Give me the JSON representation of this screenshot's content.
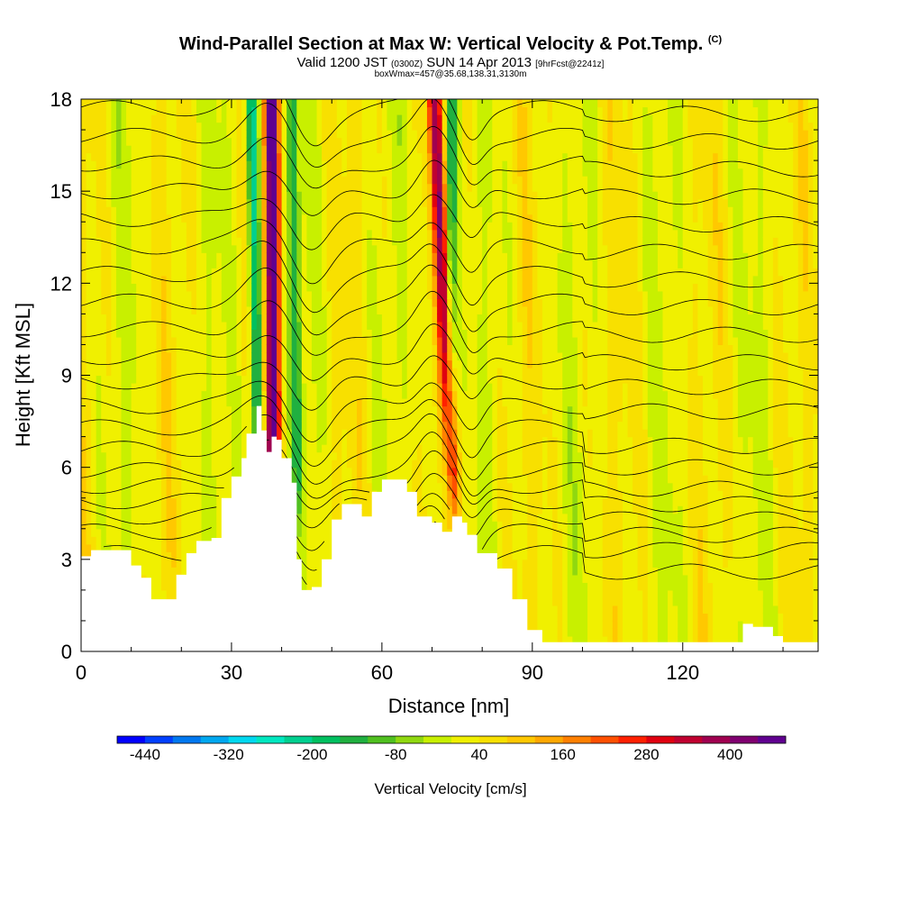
{
  "header": {
    "title_main": "Wind-Parallel Section at Max W: Vertical Velocity & Pot.Temp.",
    "title_copyright": "(C)",
    "valid_prefix": "Valid 1200 JST",
    "valid_utc": "(0300Z)",
    "valid_date": "SUN 14 Apr 2013",
    "valid_fcst": "[9hrFcst@2241z]",
    "box_info": "boxWmax=457@35.68,138.31,3130m"
  },
  "chart_data": {
    "type": "heatmap",
    "title": "Wind-Parallel Section at Max W: Vertical Velocity & Pot.Temp.",
    "xlabel": "Distance [nm]",
    "ylabel": "Height [Kft MSL]",
    "xlim": [
      0,
      147
    ],
    "ylim": [
      0,
      18
    ],
    "x_ticks": [
      0,
      30,
      60,
      90,
      120
    ],
    "y_ticks": [
      0,
      3,
      6,
      9,
      12,
      15,
      18
    ],
    "colorbar": {
      "label": "Vertical Velocity [cm/s]",
      "range": [
        -480,
        480
      ],
      "tick_labels": [
        "-440",
        "-320",
        "-200",
        "-80",
        "40",
        "160",
        "280",
        "400"
      ],
      "colors": [
        "#0000ff",
        "#0040ff",
        "#0078f0",
        "#00a8f0",
        "#00d8f0",
        "#00e8c0",
        "#00d090",
        "#00c060",
        "#20b040",
        "#50c020",
        "#90d810",
        "#c8f000",
        "#f0f000",
        "#f8e000",
        "#ffc800",
        "#ffa800",
        "#ff8000",
        "#ff5000",
        "#ff2000",
        "#e00010",
        "#c00030",
        "#a00050",
        "#800070",
        "#600090"
      ]
    },
    "terrain_kft": [
      [
        0,
        3.1
      ],
      [
        2,
        3.3
      ],
      [
        6,
        3.3
      ],
      [
        10,
        2.8
      ],
      [
        12,
        2.4
      ],
      [
        14,
        1.7
      ],
      [
        17,
        1.7
      ],
      [
        19,
        2.5
      ],
      [
        21,
        3.2
      ],
      [
        23,
        3.6
      ],
      [
        26,
        3.7
      ],
      [
        28,
        5.0
      ],
      [
        30,
        5.7
      ],
      [
        32,
        6.3
      ],
      [
        33,
        7.1
      ],
      [
        35,
        8.0
      ],
      [
        36,
        7.2
      ],
      [
        37,
        6.5
      ],
      [
        38,
        7.0
      ],
      [
        39,
        6.9
      ],
      [
        40,
        6.3
      ],
      [
        42,
        5.5
      ],
      [
        43,
        3.0
      ],
      [
        44,
        2.0
      ],
      [
        46,
        2.1
      ],
      [
        48,
        3.0
      ],
      [
        50,
        4.3
      ],
      [
        52,
        4.8
      ],
      [
        54,
        4.8
      ],
      [
        56,
        4.4
      ],
      [
        58,
        5.2
      ],
      [
        60,
        5.6
      ],
      [
        63,
        5.6
      ],
      [
        65,
        5.2
      ],
      [
        67,
        4.4
      ],
      [
        70,
        4.2
      ],
      [
        72,
        3.9
      ],
      [
        74,
        4.4
      ],
      [
        76,
        4.2
      ],
      [
        77,
        3.8
      ],
      [
        79,
        3.2
      ],
      [
        83,
        2.7
      ],
      [
        86,
        1.7
      ],
      [
        89,
        0.7
      ],
      [
        92,
        0.3
      ],
      [
        130,
        0.3
      ],
      [
        132,
        0.9
      ],
      [
        134,
        0.8
      ],
      [
        138,
        0.5
      ],
      [
        140,
        0.3
      ],
      [
        147,
        0.3
      ]
    ],
    "updraft_bands": [
      {
        "name": "strong updraft",
        "x_top": 38.0,
        "x_bottom": 38.5,
        "cm_s": 457
      },
      {
        "name": "downdraft",
        "x_top": 34.0,
        "x_bottom": 36.0,
        "cm_s": -260
      },
      {
        "name": "downdraft",
        "x_top": 42.0,
        "x_bottom": 44.0,
        "cm_s": -150
      },
      {
        "name": "updraft",
        "x_top": 70.5,
        "x_bottom": 75.5,
        "cm_s": 330
      },
      {
        "name": "downdraft",
        "x_top": 74.0,
        "x_bottom": 73.0,
        "cm_s": -180
      }
    ]
  }
}
